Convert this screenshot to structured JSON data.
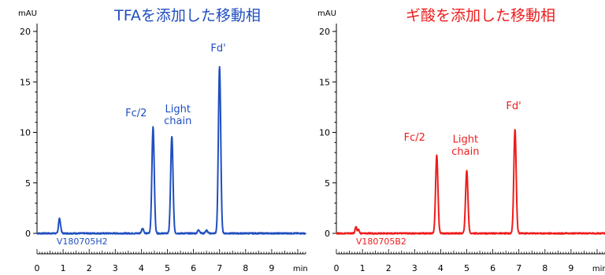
{
  "chart_data": [
    {
      "type": "line",
      "title": "TFAを添加した移動相",
      "color": "#1f4fbf",
      "ylabel": "mAU",
      "xlabel": "min",
      "xlim": [
        0,
        10.5
      ],
      "ylim": [
        -0.5,
        21
      ],
      "xticks": [
        0,
        1,
        2,
        3,
        4,
        5,
        6,
        7,
        8,
        9
      ],
      "yticks": [
        0,
        5,
        10,
        15,
        20
      ],
      "sample_label": "V180705H2",
      "peaks": [
        {
          "t": 0.85,
          "h": 1.3,
          "w": 0.03
        },
        {
          "t": 0.9,
          "h": 0.6,
          "w": 0.03
        },
        {
          "t": 4.05,
          "h": 0.5,
          "w": 0.04
        },
        {
          "t": 4.45,
          "h": 10.5,
          "w": 0.045
        },
        {
          "t": 5.17,
          "h": 9.6,
          "w": 0.045
        },
        {
          "t": 6.2,
          "h": 0.35,
          "w": 0.04
        },
        {
          "t": 6.5,
          "h": 0.3,
          "w": 0.04
        },
        {
          "t": 7.0,
          "h": 16.5,
          "w": 0.045
        }
      ],
      "annotations": [
        {
          "text": "Fc/2",
          "x": 3.8,
          "y": 11.6
        },
        {
          "text": "Light",
          "x": 5.4,
          "y": 12.0
        },
        {
          "text": "chain",
          "x": 5.4,
          "y": 10.8
        },
        {
          "text": "Fd'",
          "x": 6.95,
          "y": 18.0
        }
      ]
    },
    {
      "type": "line",
      "title": "ギ酸を添加した移動相",
      "color": "#ee1c1c",
      "ylabel": "mAU",
      "xlabel": "min",
      "xlim": [
        0,
        10.5
      ],
      "ylim": [
        -0.5,
        21
      ],
      "xticks": [
        0,
        1,
        2,
        3,
        4,
        5,
        6,
        7,
        8,
        9
      ],
      "yticks": [
        0,
        5,
        10,
        15,
        20
      ],
      "sample_label": "V180705B2",
      "peaks": [
        {
          "t": 0.75,
          "h": 0.7,
          "w": 0.03
        },
        {
          "t": 0.85,
          "h": 0.35,
          "w": 0.03
        },
        {
          "t": 3.85,
          "h": 7.7,
          "w": 0.045
        },
        {
          "t": 5.0,
          "h": 6.2,
          "w": 0.045
        },
        {
          "t": 6.85,
          "h": 10.3,
          "w": 0.045
        }
      ],
      "annotations": [
        {
          "text": "Fc/2",
          "x": 3.0,
          "y": 9.2
        },
        {
          "text": "Light",
          "x": 4.95,
          "y": 9.0
        },
        {
          "text": "chain",
          "x": 4.95,
          "y": 7.8
        },
        {
          "text": "Fd'",
          "x": 6.8,
          "y": 12.3
        }
      ]
    }
  ]
}
